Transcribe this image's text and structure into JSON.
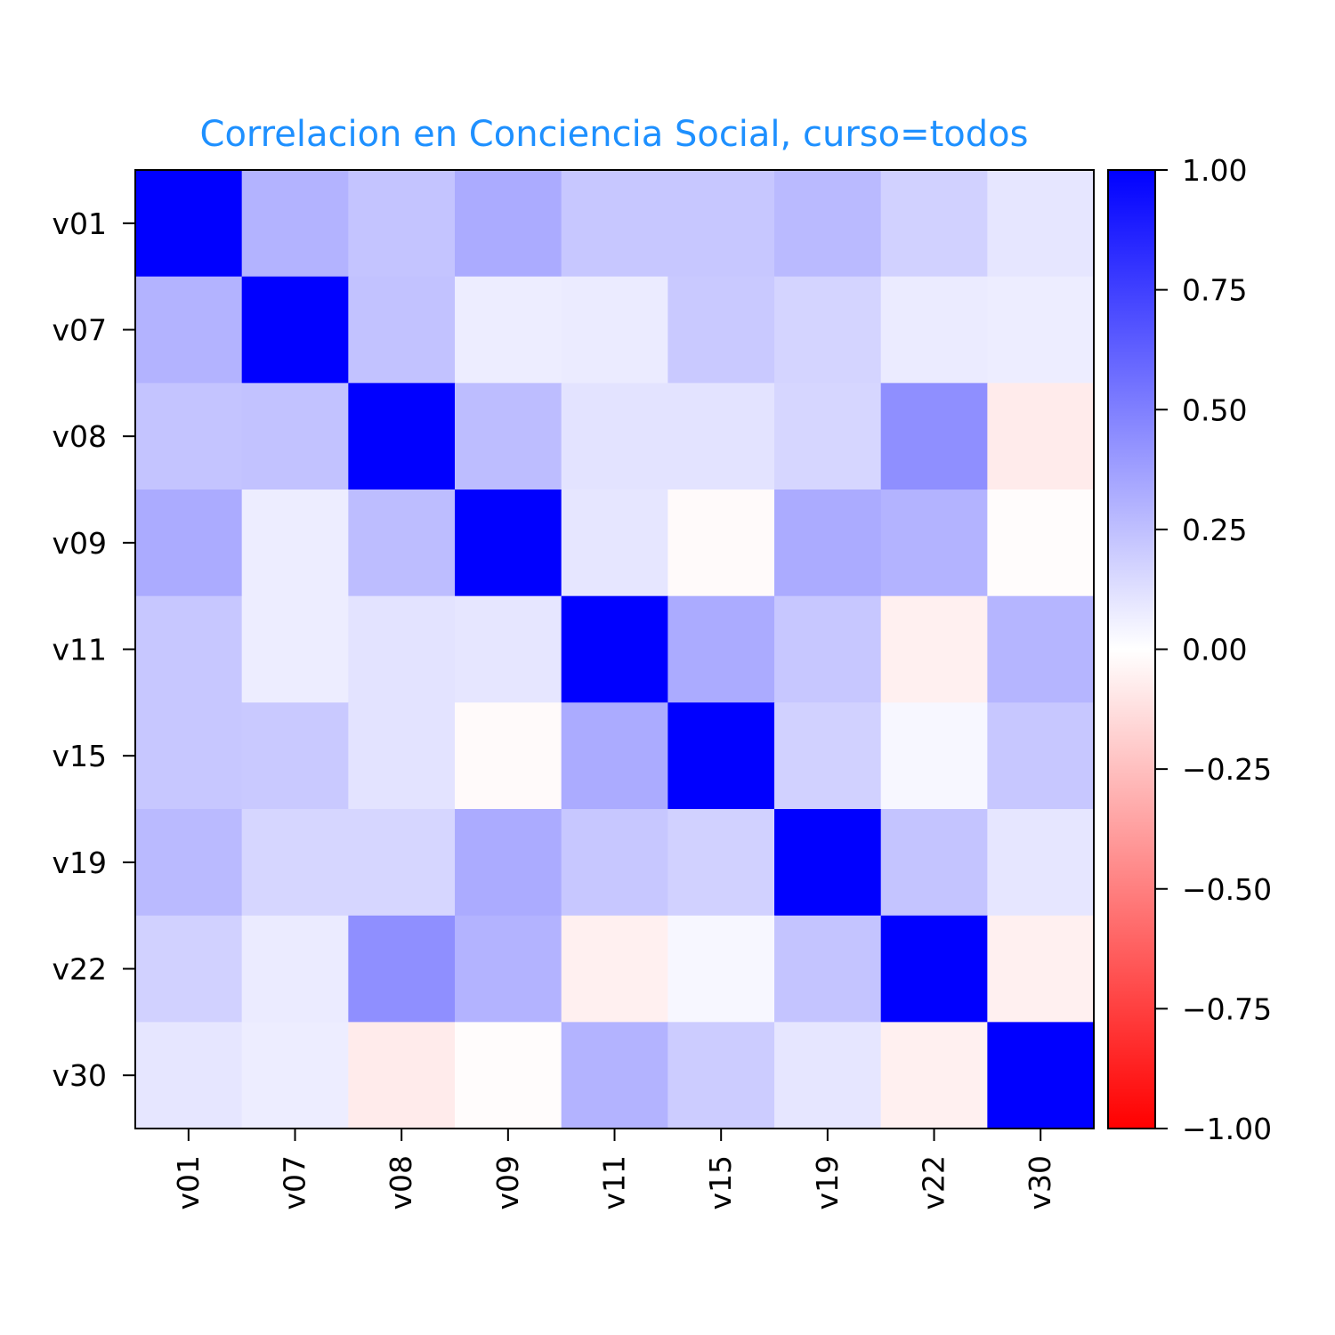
{
  "chart_data": {
    "type": "heatmap",
    "title": "Correlacion en Conciencia Social, curso=todos",
    "title_color": "#1e90ff",
    "row_labels": [
      "v01",
      "v07",
      "v08",
      "v09",
      "v11",
      "v15",
      "v19",
      "v22",
      "v30"
    ],
    "col_labels": [
      "v01",
      "v07",
      "v08",
      "v09",
      "v11",
      "v15",
      "v19",
      "v22",
      "v30"
    ],
    "values": [
      [
        1.0,
        0.3,
        0.23,
        0.33,
        0.22,
        0.22,
        0.27,
        0.18,
        0.1
      ],
      [
        0.3,
        1.0,
        0.24,
        0.07,
        0.08,
        0.21,
        0.17,
        0.08,
        0.07
      ],
      [
        0.23,
        0.24,
        1.0,
        0.26,
        0.11,
        0.11,
        0.16,
        0.44,
        -0.08
      ],
      [
        0.33,
        0.07,
        0.26,
        1.0,
        0.1,
        -0.02,
        0.33,
        0.3,
        -0.01
      ],
      [
        0.22,
        0.07,
        0.11,
        0.1,
        1.0,
        0.33,
        0.22,
        -0.06,
        0.29
      ],
      [
        0.22,
        0.21,
        0.11,
        -0.02,
        0.33,
        1.0,
        0.18,
        0.03,
        0.22
      ],
      [
        0.27,
        0.16,
        0.16,
        0.33,
        0.22,
        0.18,
        1.0,
        0.23,
        0.1
      ],
      [
        0.18,
        0.08,
        0.44,
        0.3,
        -0.06,
        0.03,
        0.23,
        1.0,
        -0.06
      ],
      [
        0.1,
        0.07,
        -0.08,
        -0.01,
        0.3,
        0.2,
        0.1,
        -0.06,
        1.0
      ]
    ],
    "vmin": -1.0,
    "vmax": 1.0,
    "colormap": [
      "#ff0000",
      "#ffffff",
      "#0000ff"
    ],
    "colorbar_ticks": [
      "1.00",
      "0.75",
      "0.50",
      "0.25",
      "0.00",
      "−0.25",
      "−0.50",
      "−0.75",
      "−1.00"
    ],
    "colorbar_tick_values": [
      1.0,
      0.75,
      0.5,
      0.25,
      0.0,
      -0.25,
      -0.5,
      -0.75,
      -1.0
    ],
    "grid": false
  }
}
